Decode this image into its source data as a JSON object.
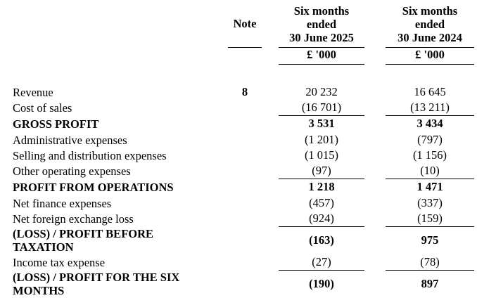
{
  "document": {
    "kind": "interim-income-statement",
    "colors": {
      "text": "#000000",
      "background": "#ffffff",
      "rule": "#000000"
    },
    "header": {
      "note": "Note",
      "period_2025": "Six months\nended\n30 June 2025",
      "period_2024": "Six months\nended\n30 June 2024",
      "unit_2025": "£ '000",
      "unit_2024": "£ '000"
    },
    "rows": [
      {
        "label": "Revenue",
        "note": "8",
        "v2025": "20 232",
        "v2024": "16 645",
        "style": "normal",
        "rule_below": false
      },
      {
        "label": "Cost of sales",
        "note": "",
        "v2025": "(16 701)",
        "v2024": "(13 211)",
        "style": "normal",
        "rule_below": true
      },
      {
        "label": "GROSS PROFIT",
        "note": "",
        "v2025": "3 531",
        "v2024": "3 434",
        "style": "bold",
        "rule_below": false
      },
      {
        "label": "Administrative expenses",
        "note": "",
        "v2025": "(1 201)",
        "v2024": "(797)",
        "style": "normal",
        "rule_below": false
      },
      {
        "label": "Selling and distribution expenses",
        "note": "",
        "v2025": "(1 015)",
        "v2024": "(1 156)",
        "style": "normal",
        "rule_below": false
      },
      {
        "label": "Other operating expenses",
        "note": "",
        "v2025": "(97)",
        "v2024": "(10)",
        "style": "normal",
        "rule_below": true
      },
      {
        "label": "PROFIT FROM OPERATIONS",
        "note": "",
        "v2025": "1 218",
        "v2024": "1 471",
        "style": "bold",
        "rule_below": false
      },
      {
        "label": "Net finance expenses",
        "note": "",
        "v2025": "(457)",
        "v2024": "(337)",
        "style": "normal",
        "rule_below": false
      },
      {
        "label": "Net foreign exchange loss",
        "note": "",
        "v2025": "(924)",
        "v2024": "(159)",
        "style": "normal",
        "rule_below": true
      },
      {
        "label": "(LOSS) / PROFIT BEFORE\nTAXATION",
        "note": "",
        "v2025": "(163)",
        "v2024": "975",
        "style": "bold-2line",
        "rule_below": false
      },
      {
        "label": "Income tax expense",
        "note": "",
        "v2025": "(27)",
        "v2024": "(78)",
        "style": "normal",
        "rule_below": true
      },
      {
        "label": "(LOSS) / PROFIT FOR THE SIX\nMONTHS",
        "note": "",
        "v2025": "(190)",
        "v2024": "897",
        "style": "bold-2line",
        "rule_below": true
      }
    ]
  }
}
